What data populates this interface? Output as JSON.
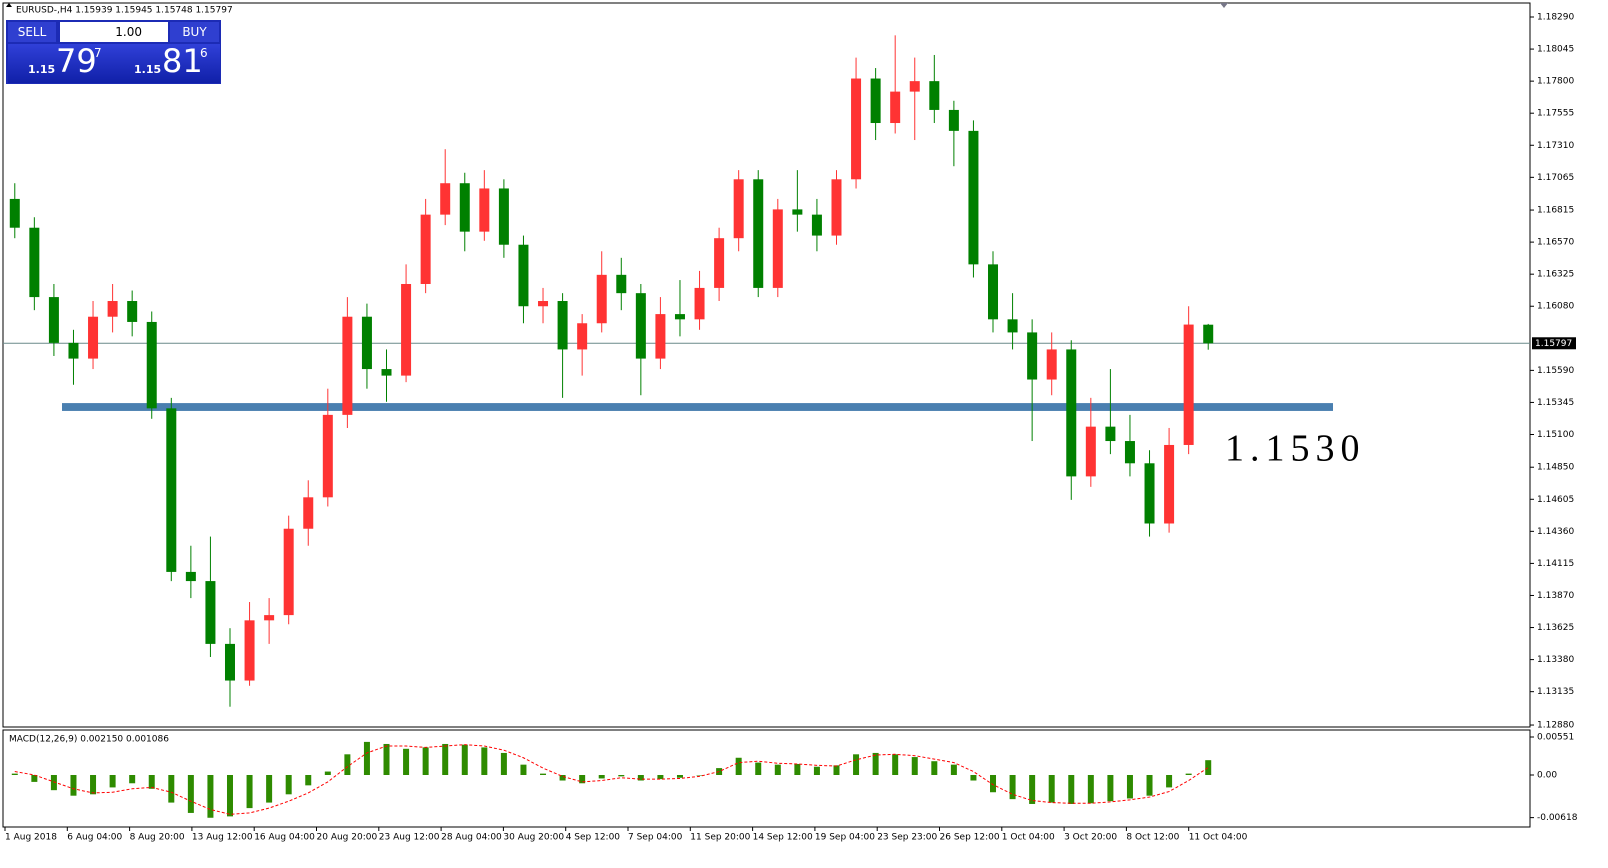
{
  "header": "EURUSD-,H4 1.15939 1.15945 1.15748 1.15797",
  "trade_panel": {
    "sell": "SELL",
    "buy": "BUY",
    "lot": "1.00",
    "bid": {
      "big": "1.15",
      "main": "79",
      "pip": "7"
    },
    "ask": {
      "big": "1.15",
      "main": "81",
      "pip": "6"
    }
  },
  "chart_data": {
    "type": "candlestick",
    "bull_color": "#ff3333",
    "bear_color": "#008000",
    "candles": [
      [
        1.169,
        1.1702,
        1.166,
        1.1668
      ],
      [
        1.1668,
        1.1676,
        1.1605,
        1.1615
      ],
      [
        1.1615,
        1.1625,
        1.157,
        1.158
      ],
      [
        1.158,
        1.159,
        1.1548,
        1.1568
      ],
      [
        1.1568,
        1.1612,
        1.156,
        1.16
      ],
      [
        1.16,
        1.1625,
        1.1588,
        1.1612
      ],
      [
        1.1612,
        1.162,
        1.1585,
        1.1596
      ],
      [
        1.1596,
        1.1604,
        1.1522,
        1.153
      ],
      [
        1.153,
        1.1538,
        1.1398,
        1.1405
      ],
      [
        1.1405,
        1.1425,
        1.1385,
        1.1398
      ],
      [
        1.1398,
        1.1432,
        1.134,
        1.135
      ],
      [
        1.135,
        1.1362,
        1.1302,
        1.1322
      ],
      [
        1.1322,
        1.1382,
        1.1318,
        1.1368
      ],
      [
        1.1368,
        1.1385,
        1.135,
        1.1372
      ],
      [
        1.1372,
        1.1448,
        1.1365,
        1.1438
      ],
      [
        1.1438,
        1.1475,
        1.1425,
        1.1462
      ],
      [
        1.1462,
        1.1545,
        1.1455,
        1.1525
      ],
      [
        1.1525,
        1.1615,
        1.1515,
        1.16
      ],
      [
        1.16,
        1.161,
        1.1545,
        1.156
      ],
      [
        1.156,
        1.1575,
        1.1535,
        1.1555
      ],
      [
        1.1555,
        1.164,
        1.155,
        1.1625
      ],
      [
        1.1625,
        1.169,
        1.1618,
        1.1678
      ],
      [
        1.1678,
        1.1728,
        1.167,
        1.1702
      ],
      [
        1.1702,
        1.171,
        1.165,
        1.1665
      ],
      [
        1.1665,
        1.1712,
        1.1658,
        1.1698
      ],
      [
        1.1698,
        1.1705,
        1.1645,
        1.1655
      ],
      [
        1.1655,
        1.1662,
        1.1595,
        1.1608
      ],
      [
        1.1608,
        1.1622,
        1.1595,
        1.1612
      ],
      [
        1.1612,
        1.1618,
        1.1538,
        1.1575
      ],
      [
        1.1575,
        1.1602,
        1.1555,
        1.1595
      ],
      [
        1.1595,
        1.165,
        1.1588,
        1.1632
      ],
      [
        1.1632,
        1.1645,
        1.1605,
        1.1618
      ],
      [
        1.1618,
        1.1625,
        1.154,
        1.1568
      ],
      [
        1.1568,
        1.1615,
        1.156,
        1.1602
      ],
      [
        1.1602,
        1.1628,
        1.1585,
        1.1598
      ],
      [
        1.1598,
        1.1635,
        1.159,
        1.1622
      ],
      [
        1.1622,
        1.1668,
        1.1612,
        1.166
      ],
      [
        1.166,
        1.1712,
        1.165,
        1.1705
      ],
      [
        1.1705,
        1.1712,
        1.1615,
        1.1622
      ],
      [
        1.1622,
        1.169,
        1.1615,
        1.1682
      ],
      [
        1.1682,
        1.1712,
        1.1665,
        1.1678
      ],
      [
        1.1678,
        1.169,
        1.165,
        1.1662
      ],
      [
        1.1662,
        1.1712,
        1.1655,
        1.1705
      ],
      [
        1.1705,
        1.1798,
        1.1698,
        1.1782
      ],
      [
        1.1782,
        1.179,
        1.1735,
        1.1748
      ],
      [
        1.1748,
        1.1815,
        1.174,
        1.1772
      ],
      [
        1.1772,
        1.1798,
        1.1735,
        1.178
      ],
      [
        1.178,
        1.18,
        1.1748,
        1.1758
      ],
      [
        1.1758,
        1.1765,
        1.1715,
        1.1742
      ],
      [
        1.1742,
        1.175,
        1.163,
        1.164
      ],
      [
        1.164,
        1.165,
        1.1588,
        1.1598
      ],
      [
        1.1598,
        1.1618,
        1.1575,
        1.1588
      ],
      [
        1.1588,
        1.1598,
        1.1505,
        1.1552
      ],
      [
        1.1552,
        1.1588,
        1.154,
        1.1575
      ],
      [
        1.1575,
        1.1582,
        1.146,
        1.1478
      ],
      [
        1.1478,
        1.1538,
        1.147,
        1.1516
      ],
      [
        1.1516,
        1.156,
        1.1495,
        1.1505
      ],
      [
        1.1505,
        1.1525,
        1.1478,
        1.1488
      ],
      [
        1.1488,
        1.1498,
        1.1432,
        1.1442
      ],
      [
        1.1442,
        1.1515,
        1.1435,
        1.1502
      ],
      [
        1.1502,
        1.1608,
        1.1495,
        1.1594
      ],
      [
        1.15939,
        1.15945,
        1.15748,
        1.15797
      ]
    ],
    "ylim": [
      1.12865,
      1.1842
    ],
    "yticks": [
      {
        "value": 1.1829,
        "label": "1.18290"
      },
      {
        "value": 1.18045,
        "label": "1.18045"
      },
      {
        "value": 1.178,
        "label": "1.17800"
      },
      {
        "value": 1.17555,
        "label": "1.17555"
      },
      {
        "value": 1.1731,
        "label": "1.17310"
      },
      {
        "value": 1.17065,
        "label": "1.17065"
      },
      {
        "value": 1.16815,
        "label": "1.16815"
      },
      {
        "value": 1.1657,
        "label": "1.16570"
      },
      {
        "value": 1.16325,
        "label": "1.16325"
      },
      {
        "value": 1.1608,
        "label": "1.16080"
      },
      {
        "value": 1.1559,
        "label": "1.15590"
      },
      {
        "value": 1.15345,
        "label": "1.15345"
      },
      {
        "value": 1.151,
        "label": "1.15100"
      },
      {
        "value": 1.1485,
        "label": "1.14850"
      },
      {
        "value": 1.14605,
        "label": "1.14605"
      },
      {
        "value": 1.1436,
        "label": "1.14360"
      },
      {
        "value": 1.14115,
        "label": "1.14115"
      },
      {
        "value": 1.1387,
        "label": "1.13870"
      },
      {
        "value": 1.13625,
        "label": "1.13625"
      },
      {
        "value": 1.1338,
        "label": "1.13380"
      },
      {
        "value": 1.13135,
        "label": "1.13135"
      },
      {
        "value": 1.1288,
        "label": "1.12880"
      }
    ],
    "current_price": 1.15797,
    "support_zone": {
      "low": 1.1528,
      "high": 1.1534,
      "color": "#4a7fb0"
    },
    "annotation": "1.1530",
    "x_labels": [
      "1 Aug 2018",
      "6 Aug 04:00",
      "8 Aug 20:00",
      "13 Aug 12:00",
      "16 Aug 04:00",
      "20 Aug 20:00",
      "23 Aug 12:00",
      "28 Aug 04:00",
      "30 Aug 20:00",
      "4 Sep 12:00",
      "7 Sep 04:00",
      "11 Sep 20:00",
      "14 Sep 12:00",
      "19 Sep 04:00",
      "23 Sep 23:00",
      "26 Sep 12:00",
      "1 Oct 04:00",
      "3 Oct 20:00",
      "8 Oct 12:00",
      "11 Oct 04:00"
    ],
    "macd": {
      "label": "MACD(12,26,9) 0.002150 0.001086",
      "color": "#2e8b00",
      "signal_color": "#ff0000",
      "histogram": [
        0.0002,
        -0.001,
        -0.0022,
        -0.003,
        -0.0028,
        -0.0018,
        -0.0012,
        -0.002,
        -0.004,
        -0.0055,
        -0.0062,
        -0.006,
        -0.0048,
        -0.004,
        -0.0028,
        -0.0015,
        0.0005,
        0.003,
        0.0048,
        0.0045,
        0.0038,
        0.004,
        0.0045,
        0.0044,
        0.004,
        0.0032,
        0.0015,
        0.0002,
        -0.0008,
        -0.0012,
        -0.0005,
        -0.0002,
        -0.0008,
        -0.0006,
        -0.0004,
        0.0,
        0.001,
        0.0025,
        0.0018,
        0.0015,
        0.0016,
        0.0012,
        0.0014,
        0.003,
        0.0032,
        0.003,
        0.0026,
        0.002,
        0.0015,
        -0.0008,
        -0.0025,
        -0.0035,
        -0.0042,
        -0.004,
        -0.0042,
        -0.0041,
        -0.0038,
        -0.0034,
        -0.003,
        -0.0018,
        0.0002,
        0.00215
      ],
      "signal": [
        0.0005,
        0.0,
        -0.001,
        -0.002,
        -0.0026,
        -0.0025,
        -0.002,
        -0.0018,
        -0.0025,
        -0.0038,
        -0.005,
        -0.0057,
        -0.0055,
        -0.0048,
        -0.0038,
        -0.0026,
        -0.001,
        0.0012,
        0.0032,
        0.0042,
        0.0042,
        0.004,
        0.0042,
        0.0044,
        0.0042,
        0.0036,
        0.0025,
        0.001,
        -0.0002,
        -0.001,
        -0.0008,
        -0.0004,
        -0.0006,
        -0.0006,
        -0.0005,
        -0.0002,
        0.0005,
        0.0018,
        0.002,
        0.0017,
        0.0016,
        0.0014,
        0.0013,
        0.0022,
        0.0029,
        0.003,
        0.0028,
        0.0023,
        0.0018,
        0.0005,
        -0.0014,
        -0.0028,
        -0.0037,
        -0.004,
        -0.0041,
        -0.0041,
        -0.0039,
        -0.0036,
        -0.0032,
        -0.0024,
        -0.0008,
        0.001086
      ],
      "ylim": [
        -0.00754,
        0.00638
      ],
      "yticks": [
        {
          "value": 0.00551,
          "label": "0.00551"
        },
        {
          "value": 0,
          "label": "0.00"
        },
        {
          "value": -0.00618,
          "label": "-0.00618"
        }
      ]
    }
  }
}
